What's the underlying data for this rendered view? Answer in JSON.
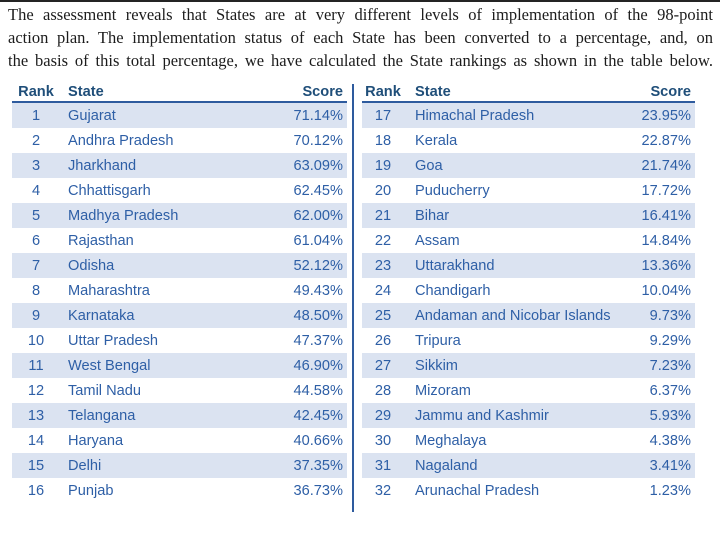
{
  "intro": {
    "lines": [
      "The assessment reveals that States are at very different levels of implementation of the 98-point",
      "action plan. The implementation status of each State has been converted to a percentage, and, on",
      "the basis of this total percentage, we have calculated the State rankings as shown in the table below."
    ]
  },
  "table": {
    "headers": {
      "rank": "Rank",
      "state": "State",
      "score": "Score"
    },
    "left_rows": [
      {
        "rank": "1",
        "state": "Gujarat",
        "score": "71.14%"
      },
      {
        "rank": "2",
        "state": "Andhra Pradesh",
        "score": "70.12%"
      },
      {
        "rank": "3",
        "state": "Jharkhand",
        "score": "63.09%"
      },
      {
        "rank": "4",
        "state": "Chhattisgarh",
        "score": "62.45%"
      },
      {
        "rank": "5",
        "state": "Madhya Pradesh",
        "score": "62.00%"
      },
      {
        "rank": "6",
        "state": "Rajasthan",
        "score": "61.04%"
      },
      {
        "rank": "7",
        "state": "Odisha",
        "score": "52.12%"
      },
      {
        "rank": "8",
        "state": "Maharashtra",
        "score": "49.43%"
      },
      {
        "rank": "9",
        "state": "Karnataka",
        "score": "48.50%"
      },
      {
        "rank": "10",
        "state": "Uttar Pradesh",
        "score": "47.37%"
      },
      {
        "rank": "11",
        "state": "West Bengal",
        "score": "46.90%"
      },
      {
        "rank": "12",
        "state": "Tamil Nadu",
        "score": "44.58%"
      },
      {
        "rank": "13",
        "state": "Telangana",
        "score": "42.45%"
      },
      {
        "rank": "14",
        "state": "Haryana",
        "score": "40.66%"
      },
      {
        "rank": "15",
        "state": "Delhi",
        "score": "37.35%"
      },
      {
        "rank": "16",
        "state": "Punjab",
        "score": "36.73%"
      }
    ],
    "right_rows": [
      {
        "rank": "17",
        "state": "Himachal Pradesh",
        "score": "23.95%"
      },
      {
        "rank": "18",
        "state": "Kerala",
        "score": "22.87%"
      },
      {
        "rank": "19",
        "state": "Goa",
        "score": "21.74%"
      },
      {
        "rank": "20",
        "state": "Puducherry",
        "score": "17.72%"
      },
      {
        "rank": "21",
        "state": "Bihar",
        "score": "16.41%"
      },
      {
        "rank": "22",
        "state": "Assam",
        "score": "14.84%"
      },
      {
        "rank": "23",
        "state": "Uttarakhand",
        "score": "13.36%"
      },
      {
        "rank": "24",
        "state": "Chandigarh",
        "score": "10.04%"
      },
      {
        "rank": "25",
        "state": "Andaman and Nicobar Islands",
        "score": "9.73%"
      },
      {
        "rank": "26",
        "state": "Tripura",
        "score": "9.29%"
      },
      {
        "rank": "27",
        "state": "Sikkim",
        "score": "7.23%"
      },
      {
        "rank": "28",
        "state": "Mizoram",
        "score": "6.37%"
      },
      {
        "rank": "29",
        "state": "Jammu and Kashmir",
        "score": "5.93%"
      },
      {
        "rank": "30",
        "state": "Meghalaya",
        "score": "4.38%"
      },
      {
        "rank": "31",
        "state": "Nagaland",
        "score": "3.41%"
      },
      {
        "rank": "32",
        "state": "Arunachal Pradesh",
        "score": "1.23%"
      }
    ]
  },
  "colors": {
    "header_text": "#1f4e79",
    "body_text": "#2e5fa6",
    "stripe": "#dbe3f1",
    "divider": "#2e5b9e"
  }
}
